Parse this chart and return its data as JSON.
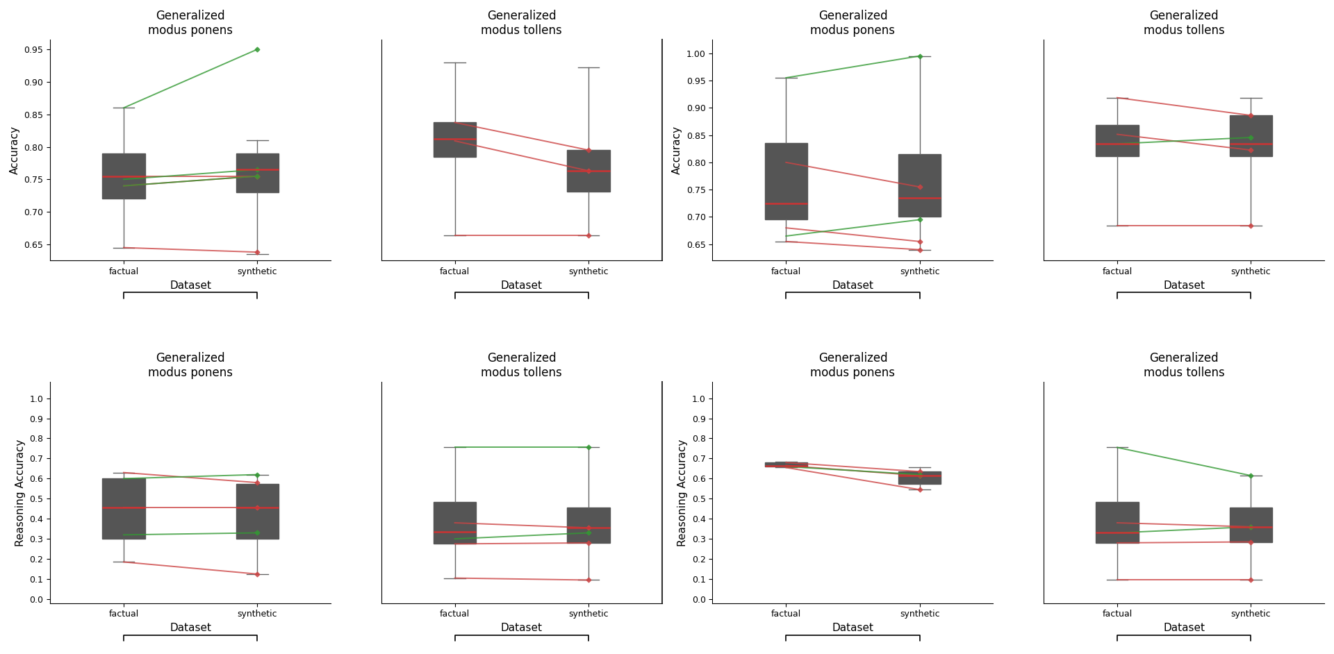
{
  "subplot_titles": [
    [
      "Generalized\nmodus ponens",
      "Generalized\nmodus tollens",
      "Generalized\nmodus ponens",
      "Generalized\nmodus tollens"
    ],
    [
      "Generalized\nmodus ponens",
      "Generalized\nmodus tollens",
      "Generalized\nmodus ponens",
      "Generalized\nmodus tollens"
    ]
  ],
  "row_ylabels": [
    "Accuracy",
    "Reasoning Accuracy"
  ],
  "xlabel": "Dataset",
  "xtick_labels": [
    "factual",
    "synthetic"
  ],
  "background_color": "#ffffff",
  "plots": {
    "r0c0": {
      "ylim": [
        0.625,
        0.965
      ],
      "yticks": [
        0.65,
        0.7,
        0.75,
        0.8,
        0.85,
        0.9,
        0.95
      ],
      "ytick_labels": [
        "0.65",
        "0.70",
        "0.75",
        "0.80",
        "0.85",
        "0.90",
        "0.95"
      ],
      "show_yticks": true,
      "factual_box": {
        "whislo": 0.645,
        "q1": 0.72,
        "med": 0.755,
        "q3": 0.79,
        "whishi": 0.86
      },
      "synthetic_box": {
        "whislo": 0.635,
        "q1": 0.73,
        "med": 0.765,
        "q3": 0.79,
        "whishi": 0.81
      },
      "red_lines": [
        [
          0.755,
          0.755
        ],
        [
          0.74,
          0.755
        ],
        [
          0.645,
          0.638
        ]
      ],
      "green_lines": [
        [
          0.86,
          0.95
        ],
        [
          0.75,
          0.765
        ],
        [
          0.74,
          0.755
        ]
      ]
    },
    "r0c1": {
      "ylim": [
        0.36,
        0.84
      ],
      "yticks": [],
      "ytick_labels": [],
      "show_yticks": false,
      "factual_box": {
        "whislo": 0.415,
        "q1": 0.585,
        "med": 0.625,
        "q3": 0.66,
        "whishi": 0.79
      },
      "synthetic_box": {
        "whislo": 0.415,
        "q1": 0.51,
        "med": 0.555,
        "q3": 0.6,
        "whishi": 0.78
      },
      "red_lines": [
        [
          0.66,
          0.6
        ],
        [
          0.62,
          0.555
        ],
        [
          0.415,
          0.415
        ]
      ],
      "green_lines": []
    },
    "r0c2": {
      "ylim": [
        0.62,
        1.025
      ],
      "yticks": [
        0.65,
        0.7,
        0.75,
        0.8,
        0.85,
        0.9,
        0.95,
        1.0
      ],
      "ytick_labels": [
        "0.65",
        "0.70",
        "0.75",
        "0.80",
        "0.85",
        "0.90",
        "0.95",
        "1.00"
      ],
      "show_yticks": true,
      "factual_box": {
        "whislo": 0.655,
        "q1": 0.695,
        "med": 0.725,
        "q3": 0.835,
        "whishi": 0.955
      },
      "synthetic_box": {
        "whislo": 0.64,
        "q1": 0.7,
        "med": 0.735,
        "q3": 0.815,
        "whishi": 0.995
      },
      "red_lines": [
        [
          0.8,
          0.755
        ],
        [
          0.68,
          0.655
        ],
        [
          0.655,
          0.64
        ]
      ],
      "green_lines": [
        [
          0.955,
          0.995
        ],
        [
          0.665,
          0.695
        ]
      ]
    },
    "r0c3": {
      "ylim": [
        0.38,
        0.73
      ],
      "yticks": [],
      "ytick_labels": [],
      "show_yticks": false,
      "factual_box": {
        "whislo": 0.435,
        "q1": 0.545,
        "med": 0.565,
        "q3": 0.595,
        "whishi": 0.638
      },
      "synthetic_box": {
        "whislo": 0.435,
        "q1": 0.545,
        "med": 0.565,
        "q3": 0.61,
        "whishi": 0.638
      },
      "red_lines": [
        [
          0.638,
          0.61
        ],
        [
          0.58,
          0.555
        ],
        [
          0.435,
          0.435
        ]
      ],
      "green_lines": [
        [
          0.565,
          0.575
        ]
      ]
    },
    "r1c0": {
      "ylim": [
        -0.02,
        1.08
      ],
      "yticks": [
        0.0,
        0.1,
        0.2,
        0.3,
        0.4,
        0.5,
        0.6,
        0.7,
        0.8,
        0.9,
        1.0
      ],
      "ytick_labels": [
        "0.0",
        "0.1",
        "0.2",
        "0.3",
        "0.4",
        "0.5",
        "0.6",
        "0.7",
        "0.8",
        "0.9",
        "1.0"
      ],
      "show_yticks": true,
      "factual_box": {
        "whislo": 0.185,
        "q1": 0.3,
        "med": 0.455,
        "q3": 0.6,
        "whishi": 0.63
      },
      "synthetic_box": {
        "whislo": 0.125,
        "q1": 0.3,
        "med": 0.455,
        "q3": 0.575,
        "whishi": 0.62
      },
      "red_lines": [
        [
          0.63,
          0.58
        ],
        [
          0.455,
          0.455
        ],
        [
          0.185,
          0.125
        ]
      ],
      "green_lines": [
        [
          0.6,
          0.62
        ],
        [
          0.32,
          0.33
        ]
      ]
    },
    "r1c1": {
      "ylim": [
        -0.02,
        1.08
      ],
      "yticks": [],
      "ytick_labels": [],
      "show_yticks": false,
      "factual_box": {
        "whislo": 0.105,
        "q1": 0.275,
        "med": 0.335,
        "q3": 0.485,
        "whishi": 0.755
      },
      "synthetic_box": {
        "whislo": 0.095,
        "q1": 0.28,
        "med": 0.355,
        "q3": 0.455,
        "whishi": 0.755
      },
      "red_lines": [
        [
          0.38,
          0.355
        ],
        [
          0.275,
          0.28
        ],
        [
          0.105,
          0.095
        ]
      ],
      "green_lines": [
        [
          0.755,
          0.755
        ],
        [
          0.3,
          0.33
        ]
      ]
    },
    "r1c2": {
      "ylim": [
        -0.02,
        1.08
      ],
      "yticks": [
        0.0,
        0.1,
        0.2,
        0.3,
        0.4,
        0.5,
        0.6,
        0.7,
        0.8,
        0.9,
        1.0
      ],
      "ytick_labels": [
        "0.0",
        "0.1",
        "0.2",
        "0.3",
        "0.4",
        "0.5",
        "0.6",
        "0.7",
        "0.8",
        "0.9",
        "1.0"
      ],
      "show_yticks": true,
      "factual_box": {
        "whislo": 0.655,
        "q1": 0.66,
        "med": 0.665,
        "q3": 0.68,
        "whishi": 0.685
      },
      "synthetic_box": {
        "whislo": 0.545,
        "q1": 0.575,
        "med": 0.615,
        "q3": 0.635,
        "whishi": 0.655
      },
      "red_lines": [
        [
          0.68,
          0.635
        ],
        [
          0.665,
          0.615
        ],
        [
          0.655,
          0.545
        ]
      ],
      "green_lines": [
        [
          0.66,
          0.62
        ]
      ]
    },
    "r1c3": {
      "ylim": [
        -0.02,
        1.08
      ],
      "yticks": [],
      "ytick_labels": [],
      "show_yticks": false,
      "factual_box": {
        "whislo": 0.095,
        "q1": 0.28,
        "med": 0.33,
        "q3": 0.485,
        "whishi": 0.755
      },
      "synthetic_box": {
        "whislo": 0.095,
        "q1": 0.285,
        "med": 0.36,
        "q3": 0.455,
        "whishi": 0.615
      },
      "red_lines": [
        [
          0.38,
          0.36
        ],
        [
          0.28,
          0.285
        ],
        [
          0.095,
          0.095
        ]
      ],
      "green_lines": [
        [
          0.755,
          0.615
        ],
        [
          0.33,
          0.36
        ]
      ]
    }
  }
}
